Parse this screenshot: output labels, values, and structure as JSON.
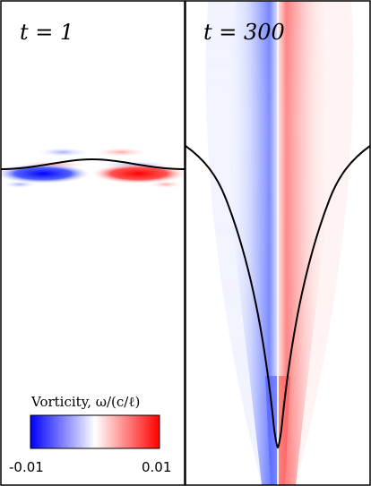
{
  "panels": [
    {
      "id": "left",
      "label": "t = 1"
    },
    {
      "id": "right",
      "label": "t = 300"
    }
  ],
  "colorbar": {
    "title": "Vorticity, ω/(c/ℓ)",
    "min_label": "-0.01",
    "max_label": "0.01",
    "colors": {
      "negative": "#0000ff",
      "zero": "#ffffff",
      "positive": "#ff0000"
    }
  },
  "colors": {
    "interface": "#000000",
    "frame": "#000000"
  }
}
